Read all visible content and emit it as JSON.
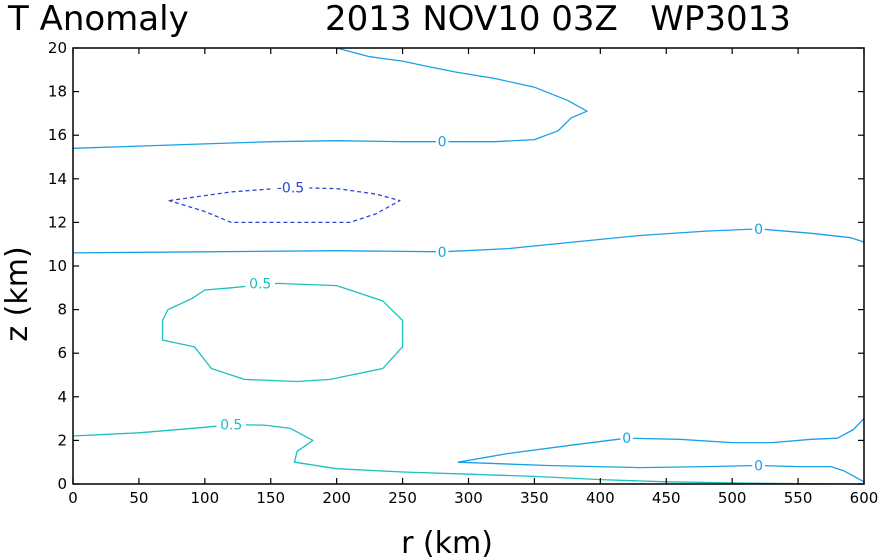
{
  "chart_data": {
    "type": "contour",
    "title_left": "T Anomaly",
    "title_right": "2013 NOV10 03Z   WP3013",
    "xlabel": "r (km)",
    "ylabel": "z (km)",
    "xlim": [
      0,
      600
    ],
    "ylim": [
      0,
      20
    ],
    "xticks": [
      0,
      50,
      100,
      150,
      200,
      250,
      300,
      350,
      400,
      450,
      500,
      550,
      600
    ],
    "yticks": [
      0,
      2,
      4,
      6,
      8,
      10,
      12,
      14,
      16,
      18,
      20
    ],
    "grid": false,
    "contours": [
      {
        "name": "zero-contour-upper",
        "level": 0,
        "color": "#1aa0e6",
        "dashed": false,
        "closed": false,
        "points": [
          [
            0,
            15.4
          ],
          [
            100,
            15.6
          ],
          [
            150,
            15.7
          ],
          [
            200,
            15.75
          ],
          [
            250,
            15.7
          ],
          [
            280,
            15.7
          ],
          [
            320,
            15.7
          ],
          [
            350,
            15.8
          ],
          [
            368,
            16.2
          ],
          [
            378,
            16.8
          ],
          [
            390,
            17.1
          ],
          [
            375,
            17.6
          ],
          [
            350,
            18.2
          ],
          [
            320,
            18.6
          ],
          [
            290,
            18.9
          ],
          [
            265,
            19.2
          ],
          [
            250,
            19.4
          ],
          [
            225,
            19.6
          ],
          [
            200,
            20
          ]
        ],
        "labels": [
          {
            "text": "0",
            "x": 280,
            "y": 15.7
          }
        ]
      },
      {
        "name": "zero-contour-middle",
        "level": 0,
        "color": "#1aa0e6",
        "dashed": false,
        "closed": false,
        "points": [
          [
            0,
            10.6
          ],
          [
            100,
            10.65
          ],
          [
            200,
            10.7
          ],
          [
            280,
            10.65
          ],
          [
            330,
            10.8
          ],
          [
            380,
            11.1
          ],
          [
            430,
            11.4
          ],
          [
            480,
            11.6
          ],
          [
            520,
            11.7
          ],
          [
            560,
            11.5
          ],
          [
            590,
            11.3
          ],
          [
            600,
            11.1
          ]
        ],
        "labels": [
          {
            "text": "0",
            "x": 280,
            "y": 10.65
          },
          {
            "text": "0",
            "x": 520,
            "y": 11.7
          }
        ]
      },
      {
        "name": "zero-contour-lower",
        "level": 0,
        "color": "#1aa0e6",
        "dashed": false,
        "closed": false,
        "points": [
          [
            600,
            0.1
          ],
          [
            585,
            0.6
          ],
          [
            575,
            0.8
          ],
          [
            550,
            0.8
          ],
          [
            520,
            0.85
          ],
          [
            480,
            0.8
          ],
          [
            430,
            0.75
          ],
          [
            360,
            0.85
          ],
          [
            292,
            1.0
          ],
          [
            330,
            1.4
          ],
          [
            380,
            1.8
          ],
          [
            420,
            2.1
          ],
          [
            460,
            2.05
          ],
          [
            500,
            1.9
          ],
          [
            530,
            1.9
          ],
          [
            560,
            2.05
          ],
          [
            580,
            2.1
          ],
          [
            592,
            2.5
          ],
          [
            600,
            3.0
          ]
        ],
        "labels": [
          {
            "text": "0",
            "x": 420,
            "y": 2.1
          },
          {
            "text": "0",
            "x": 520,
            "y": 0.85
          }
        ]
      },
      {
        "name": "neg-contour-upper",
        "level": -0.5,
        "color": "#2a45d8",
        "dashed": true,
        "closed": true,
        "points": [
          [
            73,
            13.0
          ],
          [
            120,
            13.4
          ],
          [
            165,
            13.6
          ],
          [
            200,
            13.55
          ],
          [
            230,
            13.3
          ],
          [
            248,
            13.0
          ],
          [
            230,
            12.4
          ],
          [
            210,
            12.0
          ],
          [
            150,
            12.0
          ],
          [
            120,
            12.0
          ],
          [
            100,
            12.5
          ],
          [
            73,
            13.0
          ]
        ],
        "labels": [
          {
            "text": "-0.5",
            "x": 165,
            "y": 13.6
          }
        ]
      },
      {
        "name": "pos-contour-middle",
        "level": 0.5,
        "color": "#1cc0c0",
        "dashed": false,
        "closed": true,
        "points": [
          [
            120,
            9.0
          ],
          [
            155,
            9.2
          ],
          [
            200,
            9.1
          ],
          [
            235,
            8.4
          ],
          [
            250,
            7.5
          ],
          [
            250,
            6.3
          ],
          [
            235,
            5.3
          ],
          [
            195,
            4.8
          ],
          [
            170,
            4.7
          ],
          [
            130,
            4.8
          ],
          [
            105,
            5.3
          ],
          [
            92,
            6.3
          ],
          [
            68,
            6.6
          ],
          [
            68,
            7.5
          ],
          [
            72,
            8.0
          ],
          [
            90,
            8.5
          ],
          [
            100,
            8.9
          ],
          [
            120,
            9.0
          ]
        ],
        "labels": [
          {
            "text": "0.5",
            "x": 142,
            "y": 9.2
          }
        ]
      },
      {
        "name": "pos-contour-lower",
        "level": 0.5,
        "color": "#1cc0c0",
        "dashed": false,
        "closed": false,
        "points": [
          [
            0,
            2.2
          ],
          [
            50,
            2.35
          ],
          [
            100,
            2.6
          ],
          [
            120,
            2.72
          ],
          [
            145,
            2.7
          ],
          [
            165,
            2.55
          ],
          [
            182,
            2.0
          ],
          [
            170,
            1.5
          ],
          [
            168,
            1.0
          ],
          [
            200,
            0.7
          ],
          [
            250,
            0.55
          ],
          [
            300,
            0.45
          ],
          [
            350,
            0.35
          ],
          [
            400,
            0.2
          ],
          [
            450,
            0.1
          ],
          [
            500,
            0.05
          ],
          [
            550,
            0.02
          ],
          [
            600,
            0.0
          ]
        ],
        "labels": [
          {
            "text": "0.5",
            "x": 120,
            "y": 2.72
          }
        ]
      }
    ]
  }
}
